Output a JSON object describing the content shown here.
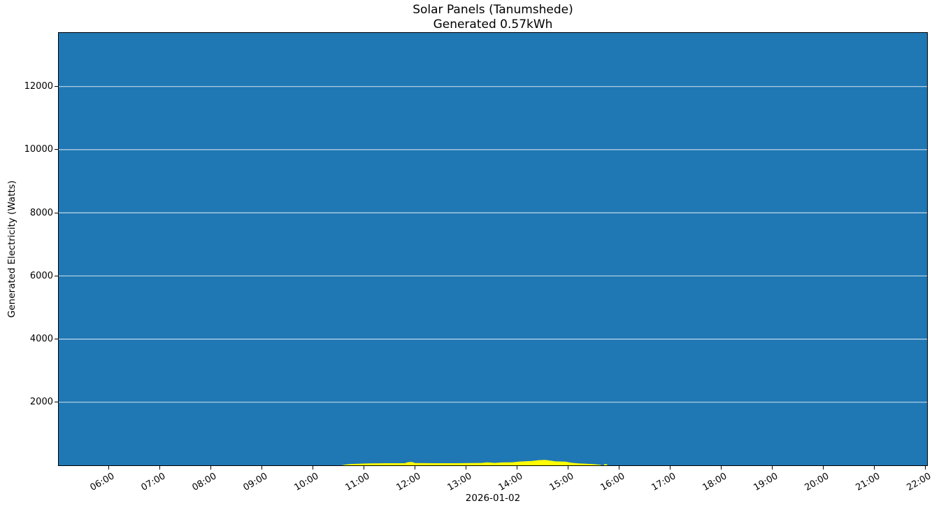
{
  "figure": {
    "background": "#ffffff",
    "title": "Solar Panels (Tanumshede)",
    "subtitle": "Generated 0.57kWh",
    "xlabel": "2026-01-02",
    "ylabel": "Generated Electricity (Watts)"
  },
  "chart_data": {
    "type": "area",
    "title": "Solar Panels (Tanumshede)",
    "subtitle": "Generated 0.57kWh",
    "xlabel": "2026-01-02",
    "ylabel": "Generated Electricity (Watts)",
    "date": "2026-01-02",
    "total_generated_kwh": 0.57,
    "x_range_hours": [
      5.02,
      22.03
    ],
    "x_tick_hours": [
      6,
      7,
      8,
      9,
      10,
      11,
      12,
      13,
      14,
      15,
      16,
      17,
      18,
      19,
      20,
      21,
      22
    ],
    "x_tick_labels": [
      "06:00",
      "07:00",
      "08:00",
      "09:00",
      "10:00",
      "11:00",
      "12:00",
      "13:00",
      "14:00",
      "15:00",
      "16:00",
      "17:00",
      "18:00",
      "19:00",
      "20:00",
      "21:00",
      "22:00"
    ],
    "ylim": [
      0,
      13700
    ],
    "y_ticks": [
      2000,
      4000,
      6000,
      8000,
      10000,
      12000
    ],
    "grid": {
      "axis": "y",
      "on": true
    },
    "legend": null,
    "colors": {
      "plot_background_fill": "#1f77b4",
      "generated_area": "#ffff00",
      "grid_line": "rgba(255,255,255,0.72)",
      "spine": "#000000",
      "text": "#000000"
    },
    "series": [
      {
        "name": "generated-electricity",
        "unit_x": "hour-of-day",
        "unit_y": "watts",
        "color": "#ffff00",
        "points_time_watts": [
          [
            10.56,
            0
          ],
          [
            10.63,
            22
          ],
          [
            10.73,
            40
          ],
          [
            10.9,
            50
          ],
          [
            11.1,
            62
          ],
          [
            11.45,
            66
          ],
          [
            11.8,
            66
          ],
          [
            11.86,
            100
          ],
          [
            11.94,
            105
          ],
          [
            12.0,
            70
          ],
          [
            12.4,
            66
          ],
          [
            12.8,
            66
          ],
          [
            13.1,
            70
          ],
          [
            13.3,
            75
          ],
          [
            13.42,
            95
          ],
          [
            13.55,
            75
          ],
          [
            13.7,
            90
          ],
          [
            13.9,
            95
          ],
          [
            14.05,
            120
          ],
          [
            14.3,
            140
          ],
          [
            14.42,
            165
          ],
          [
            14.55,
            170
          ],
          [
            14.65,
            150
          ],
          [
            14.75,
            125
          ],
          [
            14.95,
            115
          ],
          [
            15.05,
            85
          ],
          [
            15.2,
            62
          ],
          [
            15.35,
            48
          ],
          [
            15.5,
            35
          ],
          [
            15.62,
            20
          ],
          [
            15.66,
            0
          ],
          [
            15.69,
            0
          ],
          [
            15.71,
            40
          ],
          [
            15.75,
            40
          ],
          [
            15.77,
            0
          ]
        ]
      }
    ]
  }
}
